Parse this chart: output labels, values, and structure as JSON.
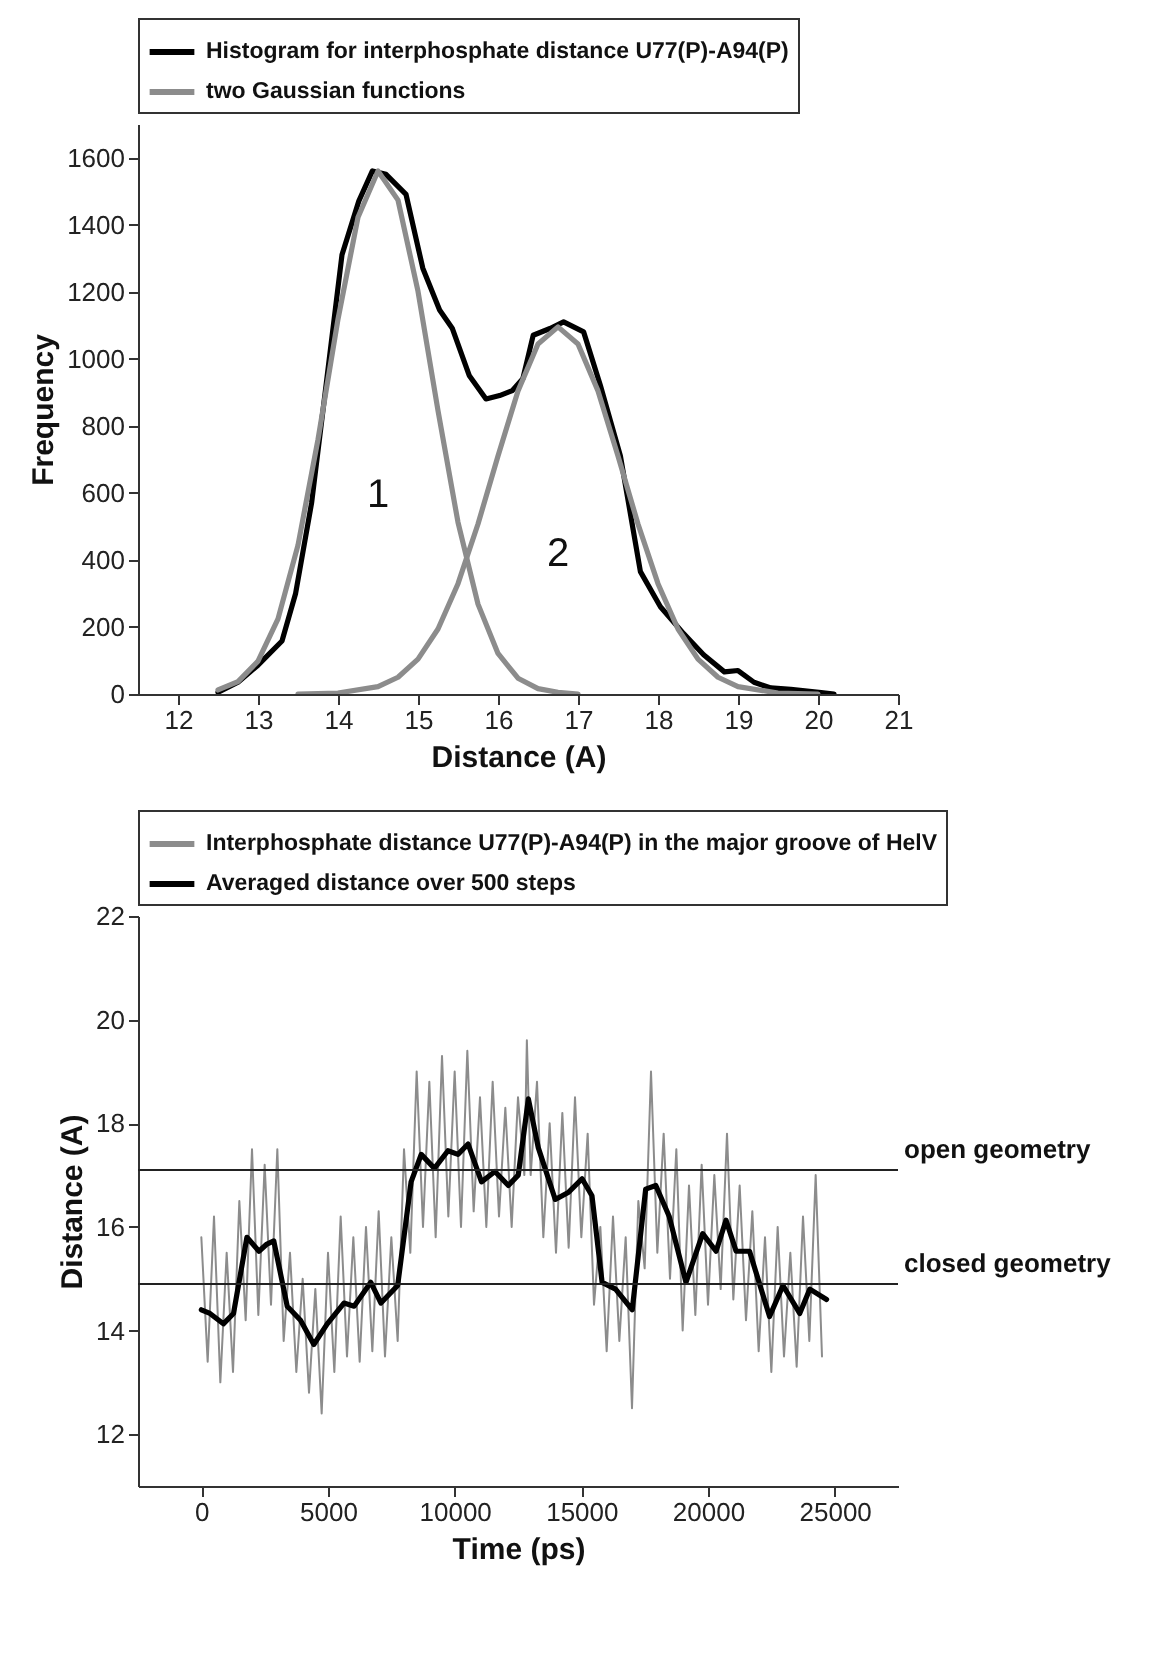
{
  "chart_data": [
    {
      "type": "line",
      "xlabel": "Distance (A)",
      "ylabel": "Frequency",
      "xlim": [
        11.5,
        21
      ],
      "ylim": [
        0,
        1700
      ],
      "xticks": [
        12,
        13,
        14,
        15,
        16,
        17,
        18,
        19,
        20,
        21
      ],
      "yticks": [
        0,
        200,
        400,
        600,
        800,
        1000,
        1200,
        1400,
        1600
      ],
      "legend": "top",
      "marker": "none",
      "line_style": "solid",
      "grid": false,
      "annotations": [
        "1",
        "2"
      ],
      "series": [
        {
          "name": "Histogram for interphosphate distance U77(P)-A94(P)",
          "color": "#000000",
          "x": [
            12.5,
            12.75,
            13.0,
            13.3,
            13.47,
            13.67,
            13.84,
            14.05,
            14.26,
            14.43,
            14.6,
            14.85,
            15.06,
            15.27,
            15.43,
            15.64,
            15.85,
            16.02,
            16.18,
            16.31,
            16.44,
            16.65,
            16.82,
            17.07,
            17.28,
            17.53,
            17.78,
            18.03,
            18.32,
            18.57,
            18.83,
            19.0,
            19.2,
            19.41,
            19.66,
            20.04,
            20.2
          ],
          "values": [
            5,
            35,
            86,
            158,
            300,
            570,
            900,
            1310,
            1470,
            1560,
            1550,
            1490,
            1270,
            1145,
            1090,
            950,
            880,
            890,
            905,
            940,
            1070,
            1090,
            1110,
            1080,
            920,
            710,
            365,
            260,
            180,
            117,
            66,
            70,
            35,
            18,
            14,
            4,
            0
          ]
        },
        {
          "name": "two Gaussian functions",
          "color": "#8c8c8c",
          "x": [
            12.5,
            12.75,
            13.0,
            13.25,
            13.5,
            13.75,
            14.0,
            14.25,
            14.5,
            14.75,
            15.0,
            15.25,
            15.5,
            15.75,
            16.0,
            16.25,
            16.5,
            16.75,
            17.0
          ],
          "values": [
            12,
            37,
            98,
            224,
            444,
            759,
            1118,
            1422,
            1560,
            1473,
            1201,
            845,
            512,
            268,
            121,
            47,
            16,
            5,
            0
          ]
        },
        {
          "color": "#8c8c8c",
          "x": [
            13.5,
            14.0,
            14.5,
            14.75,
            15.0,
            15.25,
            15.5,
            15.75,
            16.0,
            16.25,
            16.5,
            16.75,
            17.0,
            17.25,
            17.5,
            17.75,
            18.0,
            18.25,
            18.5,
            18.75,
            19.0,
            19.5,
            20.0
          ],
          "values": [
            0,
            3,
            22,
            50,
            104,
            194,
            329,
            507,
            710,
            904,
            1044,
            1095,
            1044,
            904,
            710,
            507,
            329,
            194,
            104,
            50,
            22,
            3,
            0
          ]
        }
      ]
    },
    {
      "type": "line",
      "xlabel": "Time (ps)",
      "ylabel": "Distance (A)",
      "xlim": [
        -2500,
        27500
      ],
      "ylim": [
        11,
        22
      ],
      "xticks": [
        0,
        5000,
        10000,
        15000,
        20000,
        25000
      ],
      "yticks": [
        12,
        14,
        16,
        18,
        20,
        22
      ],
      "legend": "top",
      "marker": "none",
      "line_style": "solid",
      "grid": false,
      "ref_lines": [
        {
          "axis": "y",
          "value": 17.1,
          "label": "open geometry"
        },
        {
          "axis": "y",
          "value": 14.9,
          "label": "closed geometry"
        }
      ],
      "series": [
        {
          "name": "Interphosphate distance U77(P)-A94(P) in the major groove of HelV",
          "color": "#8c8c8c",
          "x": [
            0,
            250,
            500,
            750,
            1000,
            1250,
            1500,
            1750,
            2000,
            2250,
            2500,
            2750,
            3000,
            3250,
            3500,
            3750,
            4000,
            4250,
            4500,
            4750,
            5000,
            5250,
            5500,
            5750,
            6000,
            6250,
            6500,
            6750,
            7000,
            7250,
            7500,
            7750,
            8000,
            8250,
            8500,
            8750,
            9000,
            9250,
            9500,
            9750,
            10000,
            10250,
            10500,
            10750,
            11000,
            11250,
            11500,
            11750,
            12000,
            12250,
            12500,
            12750,
            12850,
            13000,
            13250,
            13500,
            13750,
            14000,
            14250,
            14500,
            14750,
            15000,
            15250,
            15500,
            15750,
            16000,
            16250,
            16500,
            16750,
            17000,
            17250,
            17500,
            17750,
            18000,
            18250,
            18500,
            18750,
            19000,
            19250,
            19500,
            19750,
            20000,
            20250,
            20500,
            20750,
            21000,
            21250,
            21500,
            21750,
            22000,
            22250,
            22500,
            22750,
            23000,
            23250,
            23500,
            23750,
            24000,
            24250,
            24500
          ],
          "values": [
            15.8,
            13.4,
            16.2,
            13.0,
            15.5,
            13.2,
            16.5,
            14.2,
            17.5,
            14.3,
            17.2,
            14.5,
            17.5,
            13.8,
            15.5,
            13.2,
            15.0,
            12.8,
            14.8,
            12.4,
            15.5,
            13.2,
            16.2,
            13.5,
            15.8,
            13.4,
            16.0,
            13.6,
            16.3,
            13.5,
            15.8,
            13.8,
            17.5,
            15.5,
            19.0,
            16.0,
            18.8,
            15.8,
            19.3,
            16.2,
            19.0,
            16.0,
            19.4,
            16.3,
            18.5,
            16.0,
            18.8,
            16.2,
            18.3,
            16.0,
            18.5,
            17.0,
            19.6,
            17.0,
            18.8,
            15.8,
            18.0,
            15.5,
            18.2,
            15.6,
            18.5,
            15.8,
            17.8,
            14.5,
            16.0,
            13.6,
            16.2,
            13.8,
            15.8,
            12.5,
            16.5,
            15.2,
            19.0,
            15.5,
            17.8,
            15.0,
            17.5,
            14.0,
            16.8,
            14.3,
            17.2,
            14.5,
            17.0,
            14.8,
            17.8,
            14.6,
            16.8,
            14.2,
            16.3,
            13.6,
            15.8,
            13.2,
            16.0,
            13.5,
            15.5,
            13.3,
            16.2,
            13.8,
            17.0,
            13.5
          ]
        },
        {
          "name": "Averaged distance over 500 steps",
          "color": "#000000",
          "x": [
            0,
            340,
            870,
            1270,
            1800,
            2275,
            2590,
            2860,
            3390,
            3915,
            4440,
            4970,
            5630,
            6030,
            6690,
            7090,
            7750,
            8280,
            8680,
            9200,
            9735,
            10130,
            10530,
            11060,
            11590,
            12120,
            12510,
            12910,
            13300,
            13970,
            14500,
            15030,
            15420,
            15820,
            16350,
            17010,
            17540,
            17940,
            18470,
            19130,
            19790,
            20320,
            20710,
            21110,
            21640,
            22430,
            22960,
            23620,
            24020,
            24680
          ],
          "values": [
            14.4,
            14.33,
            14.13,
            14.33,
            15.8,
            15.53,
            15.67,
            15.73,
            14.47,
            14.2,
            13.73,
            14.13,
            14.53,
            14.47,
            14.93,
            14.53,
            14.87,
            16.87,
            17.4,
            17.13,
            17.47,
            17.4,
            17.6,
            16.87,
            17.07,
            16.8,
            17.0,
            18.47,
            17.53,
            16.53,
            16.67,
            16.93,
            16.6,
            14.93,
            14.8,
            14.4,
            16.73,
            16.8,
            16.2,
            14.93,
            15.87,
            15.53,
            16.13,
            15.53,
            15.53,
            14.27,
            14.87,
            14.33,
            14.8,
            14.6
          ]
        }
      ]
    }
  ]
}
